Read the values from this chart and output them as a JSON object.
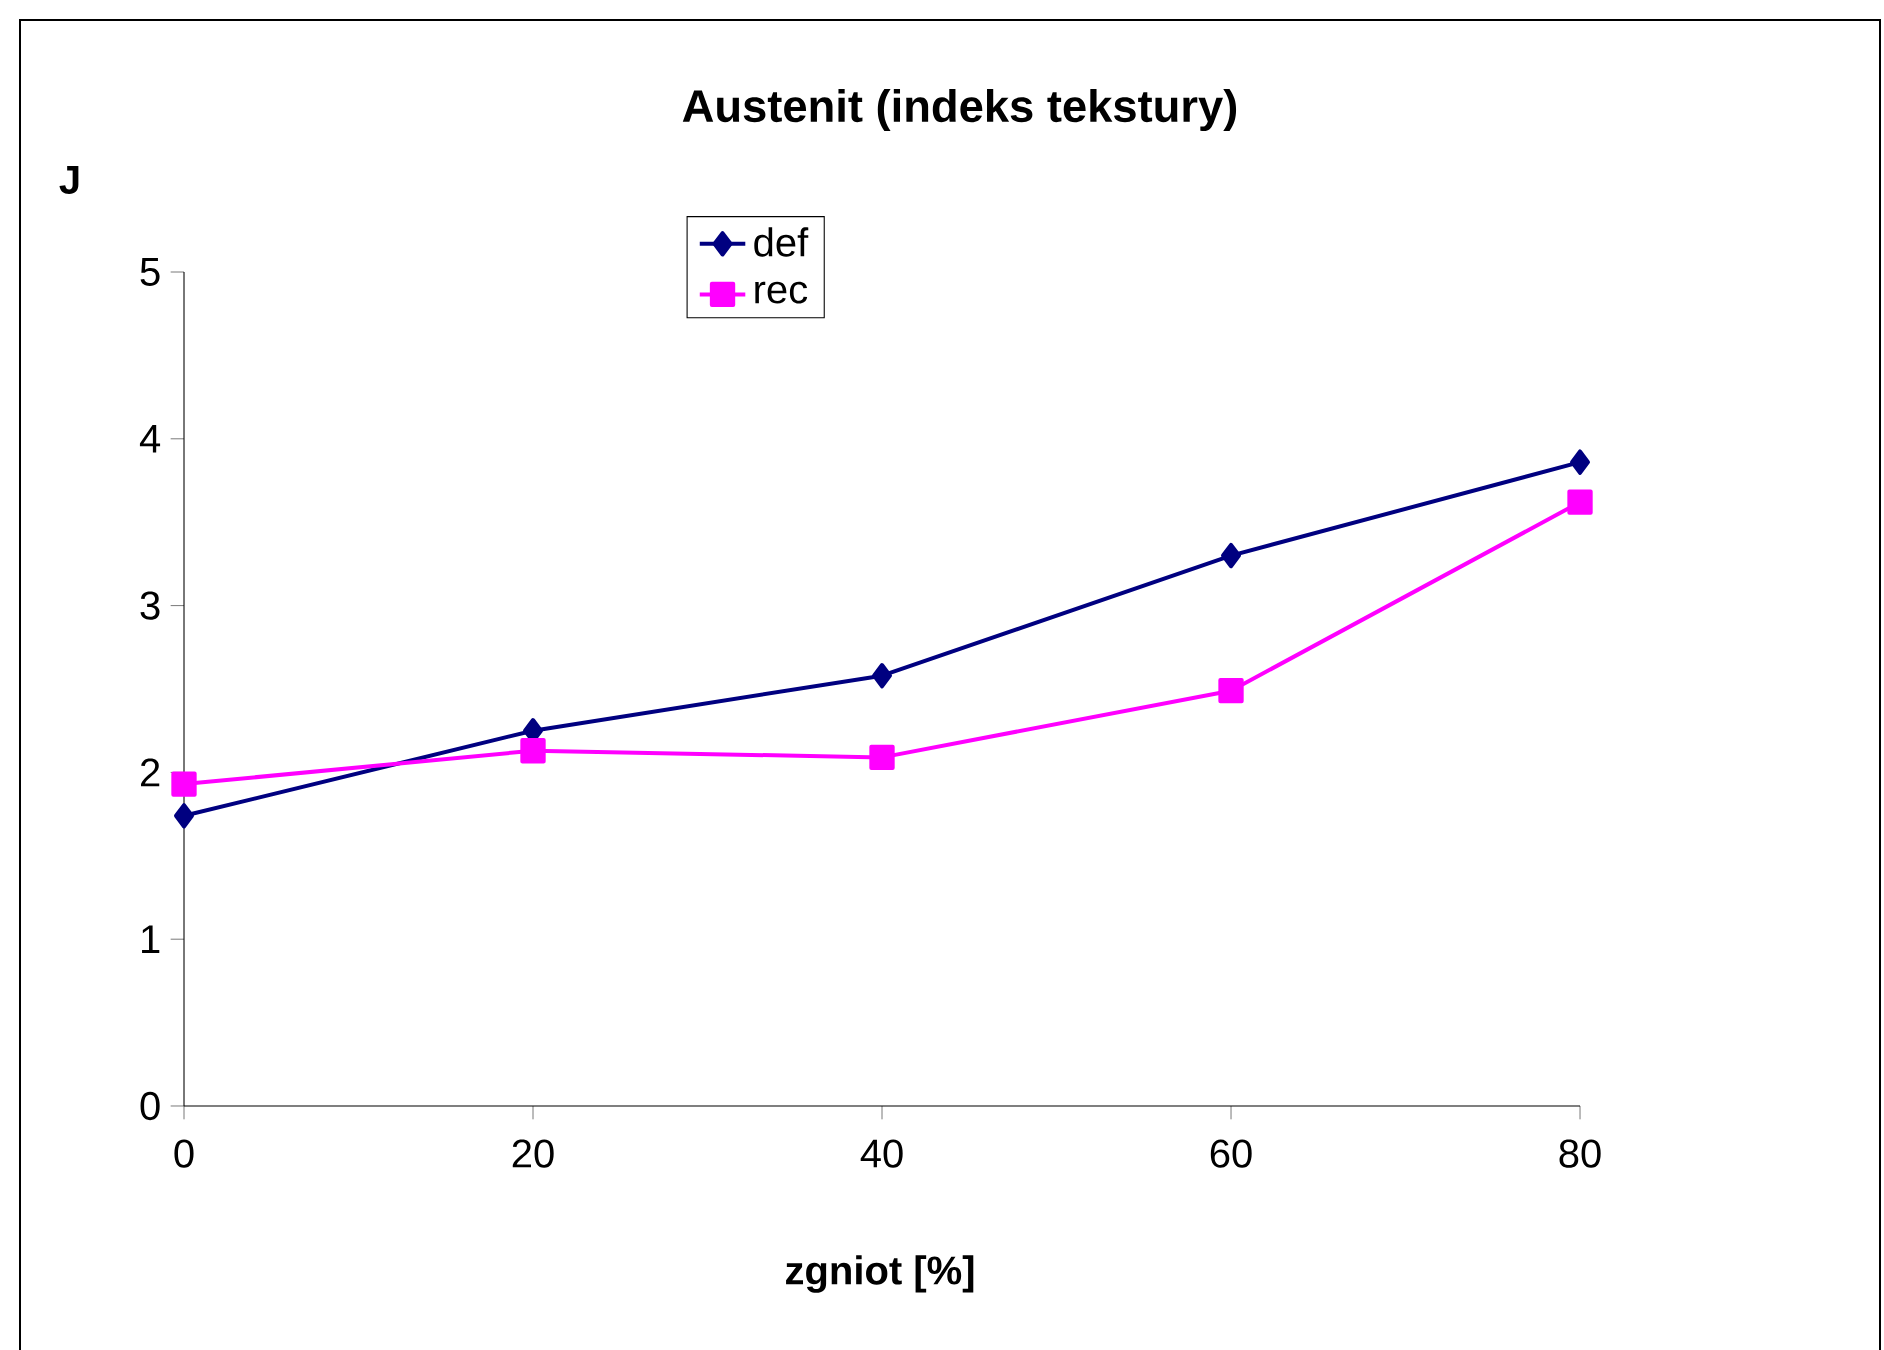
{
  "chart_data": {
    "type": "line",
    "title": "Austenit  (indeks tekstury)",
    "xlabel": "zgniot [%]",
    "ylabel": "J",
    "x": [
      0,
      20,
      40,
      60,
      80
    ],
    "series": [
      {
        "name": "def",
        "color": "#000080",
        "marker": "diamond",
        "values": [
          1.74,
          2.25,
          2.58,
          3.3,
          3.86
        ]
      },
      {
        "name": "rec",
        "color": "#ff00ff",
        "marker": "square",
        "values": [
          1.93,
          2.13,
          2.09,
          2.49,
          3.62
        ]
      }
    ],
    "xlim": [
      0,
      80
    ],
    "xticks": [
      0,
      20,
      40,
      60,
      80
    ],
    "ylim": [
      0,
      5
    ],
    "yticks": [
      0,
      1,
      2,
      3,
      4,
      5
    ],
    "grid": false,
    "legend": "top",
    "line_style": "solid"
  }
}
